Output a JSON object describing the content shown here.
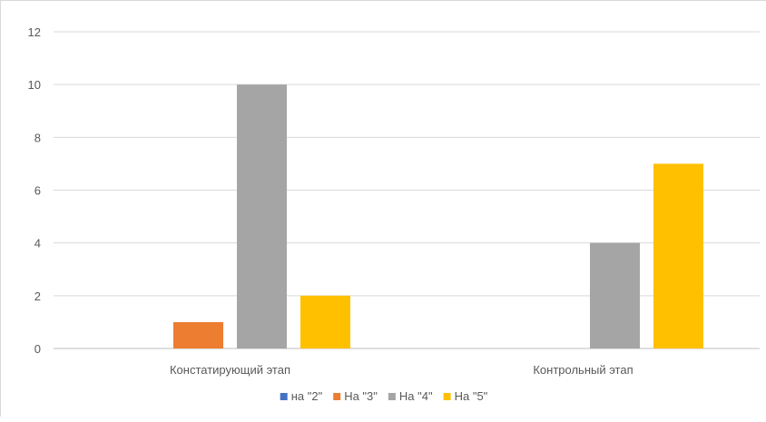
{
  "chart_data": {
    "type": "bar",
    "categories": [
      "Констатирующий этап",
      "Контрольный этап"
    ],
    "series": [
      {
        "name": "на \"2\"",
        "values": [
          0,
          0
        ],
        "color": "#4472c4"
      },
      {
        "name": "На \"3\"",
        "values": [
          1,
          0
        ],
        "color": "#ed7d31"
      },
      {
        "name": "На \"4\"",
        "values": [
          10,
          4
        ],
        "color": "#a5a5a5"
      },
      {
        "name": "На \"5\"",
        "values": [
          2,
          7
        ],
        "color": "#ffc000"
      }
    ],
    "ylim": [
      0,
      12
    ],
    "yticks": [
      0,
      2,
      4,
      6,
      8,
      10,
      12
    ],
    "grid": true,
    "legend": "bottom",
    "title": "",
    "xlabel": "",
    "ylabel": ""
  }
}
